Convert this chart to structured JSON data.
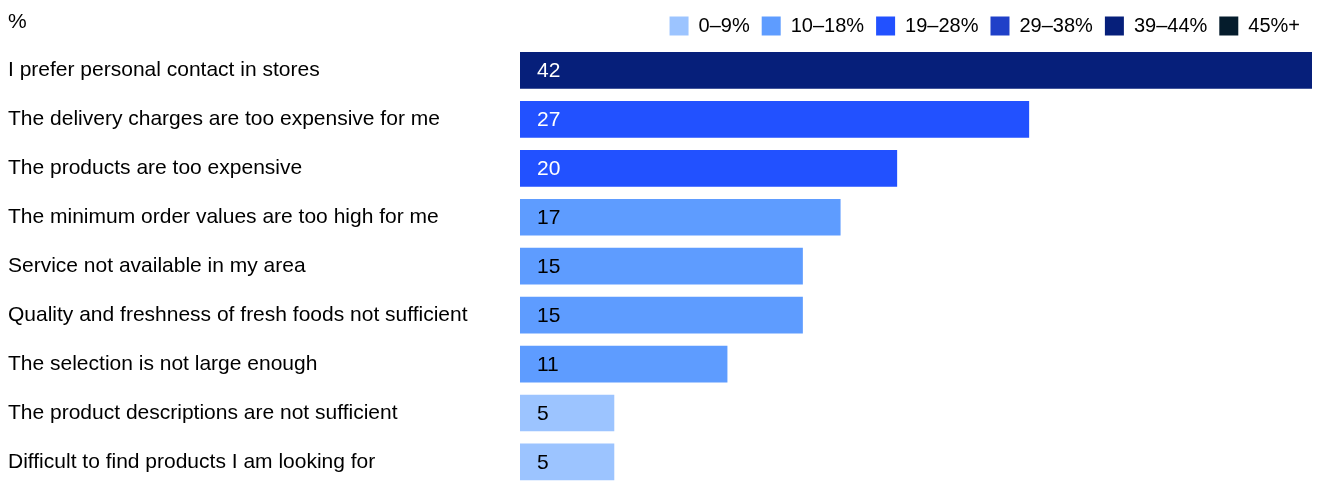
{
  "chart_data": {
    "type": "bar",
    "orientation": "horizontal",
    "stacked": true,
    "xlabel": "%",
    "categories": [
      "I prefer personal contact in stores",
      "The delivery charges are too expensive for me",
      "The products are too expensive",
      "The minimum order values are too high for me",
      "Service not available in my area",
      "Quality and freshness of fresh foods not sufficient",
      "The selection is not large enough",
      "The product descriptions are not sufficient",
      "Difficult to find products I am looking for"
    ],
    "series": [
      {
        "name": "0–9%",
        "color": "#9cc4ff",
        "values": [
          null,
          null,
          null,
          null,
          null,
          null,
          null,
          5,
          5
        ]
      },
      {
        "name": "10–18%",
        "color": "#5e9cff",
        "values": [
          null,
          null,
          null,
          17,
          15,
          15,
          11,
          null,
          null
        ]
      },
      {
        "name": "19–28%",
        "color": "#2251ff",
        "values": [
          null,
          27,
          20,
          null,
          null,
          null,
          null,
          null,
          null
        ]
      },
      {
        "name": "29–38%",
        "color": "#1f40c8",
        "values": [
          null,
          null,
          null,
          null,
          null,
          null,
          null,
          null,
          null
        ]
      },
      {
        "name": "39–44%",
        "color": "#061f7a",
        "values": [
          42,
          null,
          null,
          null,
          null,
          null,
          null,
          null,
          null
        ]
      },
      {
        "name": "45%+",
        "color": "#051c2c",
        "values": [
          null,
          null,
          null,
          null,
          null,
          null,
          null,
          null,
          null
        ]
      }
    ],
    "data_labels": true,
    "legend": "top right"
  }
}
